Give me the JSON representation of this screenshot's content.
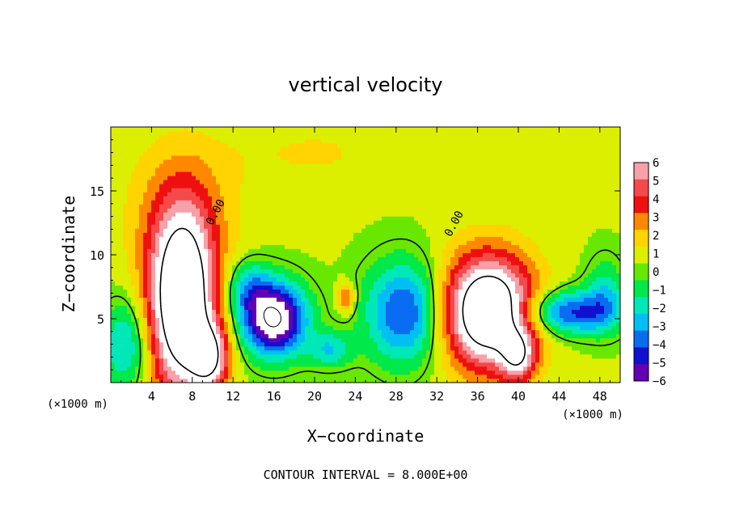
{
  "chart_data": {
    "type": "heatmap",
    "title": "vertical velocity",
    "xlabel": "X−coordinate",
    "ylabel": "Z−coordinate",
    "x_unit_left": "(×1000 m)",
    "x_unit_right": "(×1000 m)",
    "footer": "CONTOUR INTERVAL = 8.000E+00",
    "xlim": [
      0,
      50
    ],
    "ylim": [
      0,
      20
    ],
    "x_ticks": [
      "4",
      "8",
      "12",
      "16",
      "20",
      "24",
      "28",
      "32",
      "36",
      "40",
      "44",
      "48"
    ],
    "x_tick_values": [
      4,
      8,
      12,
      16,
      20,
      24,
      28,
      32,
      36,
      40,
      44,
      48
    ],
    "y_ticks": [
      "5",
      "10",
      "15"
    ],
    "y_tick_values": [
      5,
      10,
      15
    ],
    "contour_labels": [
      {
        "text": "0.00",
        "x": 10.6,
        "y": 13.2
      },
      {
        "text": "0.00",
        "x": 34.0,
        "y": 12.3
      }
    ],
    "colorbar": {
      "labels": [
        "6",
        "5",
        "4",
        "3",
        "2",
        "1",
        "0",
        "−1",
        "−2",
        "−3",
        "−4",
        "−5",
        "−6"
      ],
      "values": [
        6,
        5,
        4,
        3,
        2,
        1,
        0,
        -1,
        -2,
        -3,
        -4,
        -5,
        -6
      ],
      "colors": [
        "#f7a0a8",
        "#f44a4a",
        "#ee1010",
        "#ff8800",
        "#ffd400",
        "#dcef00",
        "#68e800",
        "#00e84a",
        "#00e8b8",
        "#00bff4",
        "#0a6cf0",
        "#1010d0",
        "#6400b4"
      ]
    },
    "features": [
      {
        "kind": "updraft",
        "x": 7.0,
        "z": 6.2,
        "sx": 2.3,
        "sz": 5.0,
        "amp": 11.0
      },
      {
        "kind": "updraft",
        "x": 37.0,
        "z": 5.6,
        "sx": 3.2,
        "sz": 3.1,
        "amp": 11.0
      },
      {
        "kind": "updraft",
        "x": 9.8,
        "z": 2.0,
        "sx": 1.3,
        "sz": 1.8,
        "amp": 6.0
      },
      {
        "kind": "updraft",
        "x": 40.0,
        "z": 2.0,
        "sx": 1.2,
        "sz": 1.4,
        "amp": 5.0
      },
      {
        "kind": "weak-updraft",
        "x": 7.0,
        "z": 13.5,
        "sx": 4.0,
        "sz": 4.0,
        "amp": 2.0
      },
      {
        "kind": "weak-updraft",
        "x": 23.1,
        "z": 6.6,
        "sx": 0.6,
        "sz": 0.8,
        "amp": 3.5
      },
      {
        "kind": "weak-updraft",
        "x": 20.0,
        "z": 18.0,
        "sx": 6.0,
        "sz": 2.0,
        "amp": 1.0
      },
      {
        "kind": "downdraft",
        "x": 16.0,
        "z": 5.0,
        "sx": 2.2,
        "sz": 2.0,
        "amp": -9.0
      },
      {
        "kind": "downdraft",
        "x": 29.0,
        "z": 5.5,
        "sx": 2.8,
        "sz": 2.8,
        "amp": -5.5
      },
      {
        "kind": "downdraft",
        "x": 45.0,
        "z": 5.5,
        "sx": 3.2,
        "sz": 1.2,
        "amp": -5.5
      },
      {
        "kind": "downdraft",
        "x": 1.5,
        "z": 3.0,
        "sx": 1.6,
        "sz": 2.5,
        "amp": -3.5
      },
      {
        "kind": "downdraft",
        "x": 21.5,
        "z": 2.6,
        "sx": 1.5,
        "sz": 1.0,
        "amp": -3.0
      },
      {
        "kind": "downdraft",
        "x": 13.5,
        "z": 7.5,
        "sx": 1.5,
        "sz": 1.5,
        "amp": -3.0
      },
      {
        "kind": "downdraft",
        "x": 48.5,
        "z": 7.0,
        "sx": 1.3,
        "sz": 2.0,
        "amp": -2.5
      }
    ]
  }
}
